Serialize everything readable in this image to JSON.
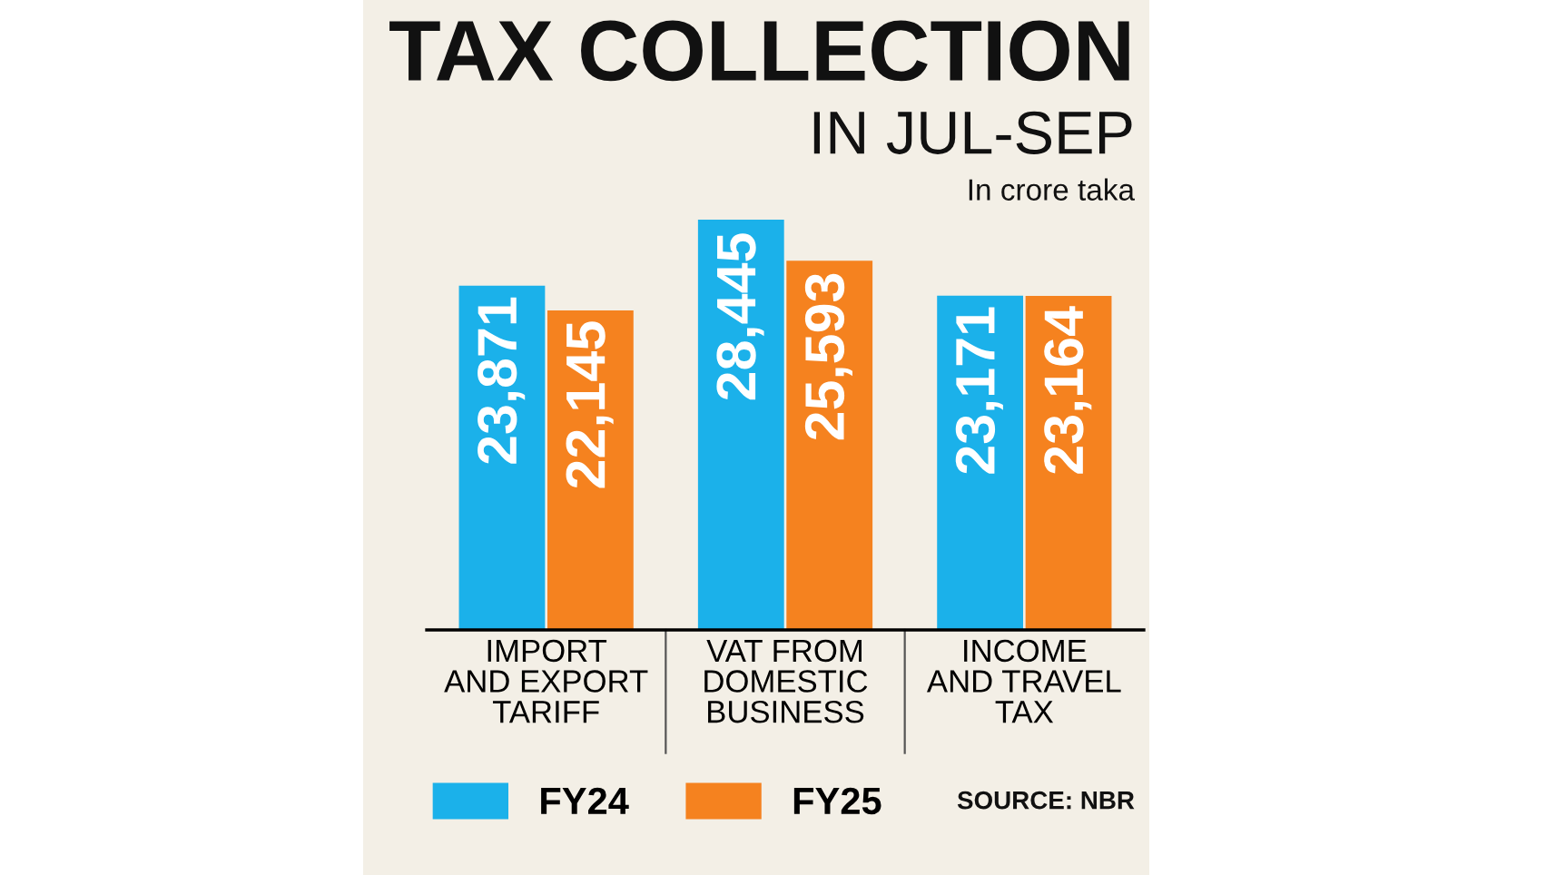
{
  "chart_data": {
    "type": "bar",
    "title": "TAX COLLECTION",
    "subtitle": "IN JUL-SEP",
    "annotations": [
      "In crore taka",
      "SOURCE: NBR"
    ],
    "categories": [
      "IMPORT\nAND EXPORT\nTARIFF",
      "VAT FROM\nDOMESTIC\nBUSINESS",
      "INCOME\nAND TRAVEL\nTAX"
    ],
    "series": [
      {
        "name": "FY24",
        "color": "#1bb1ea",
        "values": [
          23871,
          28445,
          23171
        ],
        "value_labels": [
          "23,871",
          "28,445",
          "23,171"
        ]
      },
      {
        "name": "FY25",
        "color": "#f5821f",
        "values": [
          22145,
          25593,
          23164
        ],
        "value_labels": [
          "22,145",
          "25,593",
          "23,164"
        ]
      }
    ],
    "legend": "bottom",
    "grid": false,
    "tick_labels": "x"
  }
}
